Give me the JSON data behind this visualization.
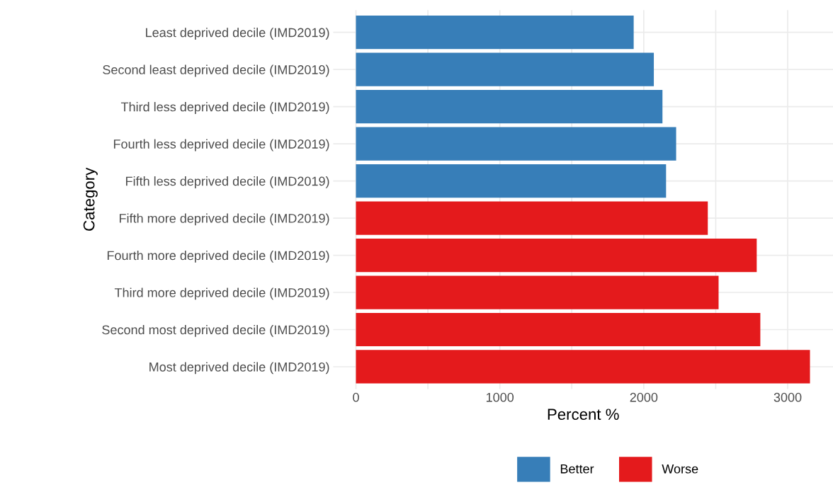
{
  "chart_data": {
    "type": "bar",
    "orientation": "horizontal",
    "xlabel": "Percent %",
    "ylabel": "Category",
    "categories": [
      "Least deprived decile (IMD2019)",
      "Second least deprived decile (IMD2019)",
      "Third less deprived decile (IMD2019)",
      "Fourth less deprived decile (IMD2019)",
      "Fifth less deprived decile (IMD2019)",
      "Fifth more deprived decile (IMD2019)",
      "Fourth more deprived decile (IMD2019)",
      "Third more deprived decile (IMD2019)",
      "Second most deprived decile (IMD2019)",
      "Most deprived decile (IMD2019)"
    ],
    "series": [
      {
        "name": "Better",
        "color": "#377eb8",
        "values": [
          1930,
          2070,
          2130,
          2225,
          2155,
          null,
          null,
          null,
          null,
          null
        ]
      },
      {
        "name": "Worse",
        "color": "#e41a1c",
        "values": [
          null,
          null,
          null,
          null,
          null,
          2445,
          2785,
          2520,
          2810,
          3155
        ]
      }
    ],
    "xlim": [
      -158,
      3315
    ],
    "xticks": [
      0,
      {
        "value": 500,
        "label": null
      },
      1000,
      {
        "value": 1500,
        "label": null
      },
      2000,
      {
        "value": 2500,
        "label": null
      },
      3000
    ],
    "grid": true,
    "legend": "bottom"
  }
}
